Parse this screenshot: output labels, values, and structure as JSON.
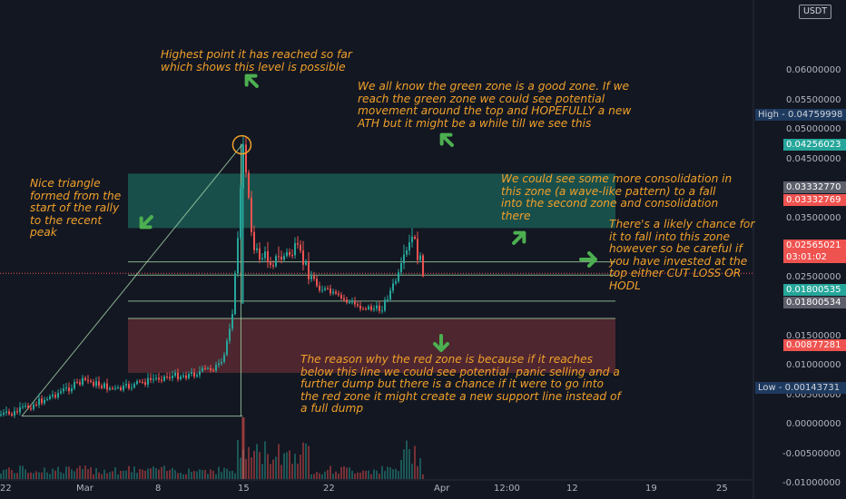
{
  "currency": "USDT",
  "colors": {
    "background": "#131722",
    "axis_text": "#b2b5be",
    "up_candle": "#26a69a",
    "down_candle": "#ef5350",
    "annotation": "#f0a02a",
    "arrow": "#4caf50",
    "green_zone": "#1b5e56",
    "red_zone": "#5d2a33",
    "guide_line": "#a5d6a7",
    "highlight_circle": "#f0a02a"
  },
  "annotations": {
    "top": "Highest point it has reached so far\nwhich shows this level is possible",
    "green": "We all know the green zone is a good zone. If we\nreach the green zone we could see potential\nmovement around the top and HOPEFULLY a new\nATH but it might be a while till we see this",
    "triangle": "Nice triangle\nformed from the\nstart of the rally\nto the recent\npeak",
    "consolidation": "We could see some more consolidation in\nthis zone (a wave-like pattern) to a fall\ninto the second zone and consolidation\nthere",
    "likely": "There's a likely chance for\nit to fall into this zone\nhowever so be careful if\nyou have invested at the\ntop either CUT LOSS OR\nHODL",
    "red": "The reason why the red zone is because if it reaches\nbelow this line we could see potential  panic selling and a\nfurther dump but there is a chance if it were to go into\nthe red zone it might create a new support line instead of\na full dump"
  },
  "price_tags": {
    "high": {
      "label": "High",
      "value": "0.04759998"
    },
    "green_top": {
      "value": "0.04256023"
    },
    "level_a": {
      "value": "0.03332770"
    },
    "level_b": {
      "value": "0.03332769"
    },
    "last_price": {
      "value": "0.02565021"
    },
    "countdown": {
      "value": "03:01:02"
    },
    "support_a": {
      "value": "0.01800535"
    },
    "support_b": {
      "value": "0.01800534"
    },
    "red_bottom": {
      "value": "0.00877281"
    },
    "low": {
      "label": "Low",
      "value": "0.00143731"
    }
  },
  "chart_data": {
    "type": "candlestick",
    "title": "",
    "x_ticks": [
      "22",
      "Mar",
      "8",
      "15",
      "22",
      "Apr",
      "12:00",
      "12",
      "19",
      "25"
    ],
    "y_ticks": [
      "0.06000000",
      "0.05500000",
      "0.05000000",
      "0.04500000",
      "0.04000000",
      "0.03500000",
      "0.03000000",
      "0.02500000",
      "0.02000000",
      "0.01500000",
      "0.01000000",
      "0.00500000",
      "0.00000000",
      "-0.00500000",
      "-0.01000000"
    ],
    "ylim": [
      -0.0115,
      0.0635
    ],
    "grid": false,
    "volume_bars": true,
    "series": [
      {
        "name": "price",
        "x": [
          "02-22",
          "02-25",
          "03-01",
          "03-04",
          "03-08",
          "03-11",
          "03-14",
          "03-15",
          "03-16",
          "03-17",
          "03-19",
          "03-21",
          "03-23",
          "03-25",
          "03-27",
          "03-29",
          "03-31",
          "04-01",
          "04-02"
        ],
        "close": [
          0.0017,
          0.0042,
          0.0075,
          0.0058,
          0.008,
          0.0085,
          0.0101,
          0.02,
          0.0476,
          0.029,
          0.0278,
          0.0295,
          0.0235,
          0.0215,
          0.02,
          0.0195,
          0.0265,
          0.0318,
          0.0257
        ]
      }
    ],
    "zones": [
      {
        "name": "green zone",
        "from": 0.0333277,
        "to": 0.04256023
      },
      {
        "name": "red zone",
        "from": 0.00877281,
        "to": 0.01800534
      }
    ],
    "lines": [
      0.0276,
      0.02535,
      0.02095,
      0.01800535
    ],
    "high": 0.04759998,
    "low": 0.00143731,
    "last": 0.02565021
  }
}
